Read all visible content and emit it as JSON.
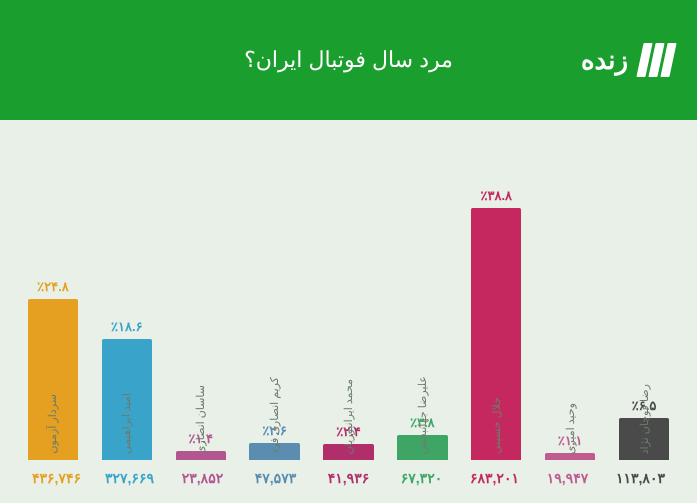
{
  "header": {
    "live_text": "زنده",
    "background_color": "#1a9e2e",
    "text_color": "#ffffff"
  },
  "title": "مرد سال فوتبال ایران؟",
  "chart": {
    "type": "bar",
    "background_color": "#e8f0e8",
    "max_percent": 40,
    "label_color": "#6b7c6f",
    "items": [
      {
        "name": "سردار آزمون",
        "percent": 24.8,
        "pct_label": "٪۲۴.۸",
        "value": "۴۳۶,۷۴۶",
        "color": "#e6a021"
      },
      {
        "name": "امید ابراهیمی",
        "percent": 18.6,
        "pct_label": "٪۱۸.۶",
        "value": "۳۲۷,۶۶۹",
        "color": "#3aa3c9"
      },
      {
        "name": "ساسان انصاری",
        "percent": 1.4,
        "pct_label": "٪۱.۴",
        "value": "۲۳,۸۵۲",
        "color": "#b2568f"
      },
      {
        "name": "کریم انصاری فرد",
        "percent": 2.6,
        "pct_label": "٪۲.۶",
        "value": "۴۷,۵۷۳",
        "color": "#5a8db0"
      },
      {
        "name": "محمد ایرانپوریان",
        "percent": 2.4,
        "pct_label": "٪۲.۴",
        "value": "۴۱,۹۳۶",
        "color": "#b02e6a"
      },
      {
        "name": "علیرضا جهانبخش",
        "percent": 3.8,
        "pct_label": "٪۳.۸",
        "value": "۶۷,۳۲۰",
        "color": "#3fa565"
      },
      {
        "name": "جلال حسینی",
        "percent": 38.8,
        "pct_label": "٪۳۸.۸",
        "value": "۶۸۳,۲۰۱",
        "color": "#c4285e"
      },
      {
        "name": "وحید امیری",
        "percent": 1.1,
        "pct_label": "٪۱.۱",
        "value": "۱۹,۹۴۷",
        "color": "#c05a8f"
      },
      {
        "name": "رضا قوچان نژاد",
        "percent": 6.5,
        "pct_label": "٪۶.۵",
        "value": "۱۱۳,۸۰۳",
        "color": "#4a4a4a"
      }
    ]
  }
}
